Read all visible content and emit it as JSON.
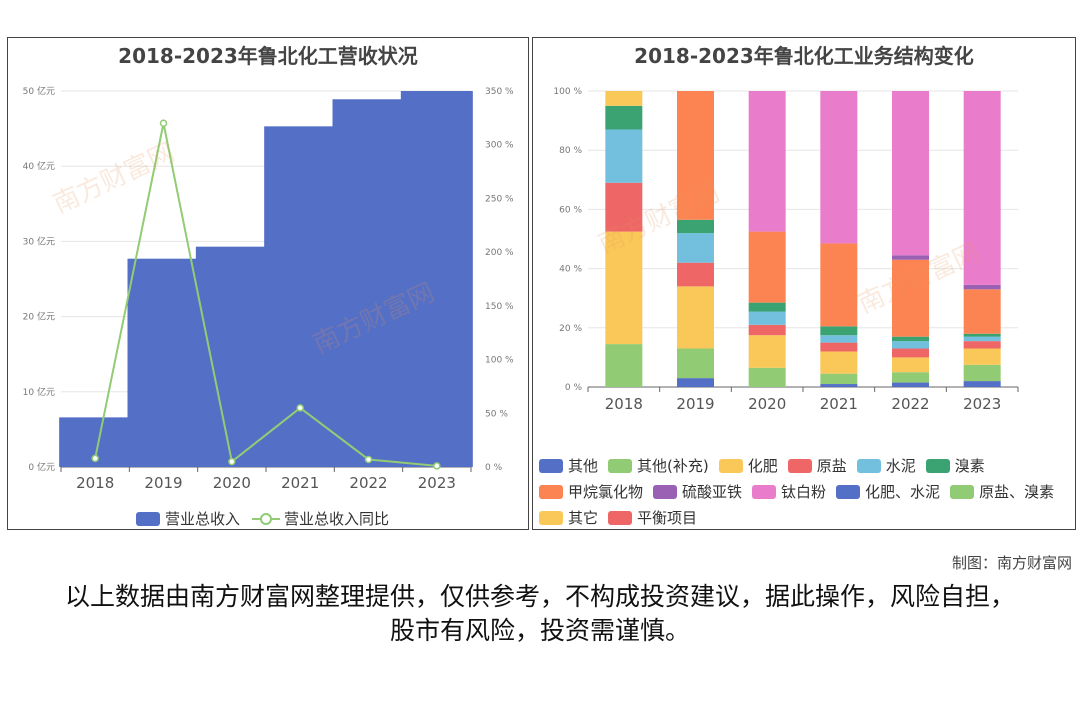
{
  "credit": "制图：南方财富网",
  "disclaimer": "以上数据由南方财富网整理提供，仅供参考，不构成投资建议，据此操作，风险自担，股市有风险，投资需谨慎。",
  "watermark": "南方财富网",
  "chart_data": [
    {
      "type": "bar",
      "title": "2018-2023年鲁北化工营收状况",
      "categories": [
        "2018",
        "2019",
        "2020",
        "2021",
        "2022",
        "2023"
      ],
      "series": [
        {
          "name": "营业总收入",
          "type": "bar",
          "axis": "left",
          "color": "#546fc6",
          "values": [
            6.6,
            27.7,
            29.3,
            45.3,
            48.9,
            50.0
          ]
        },
        {
          "name": "营业总收入同比",
          "type": "line",
          "axis": "right",
          "color": "#91cc75",
          "values": [
            8,
            320,
            5,
            55,
            7,
            1
          ]
        }
      ],
      "left_axis": {
        "min": 0,
        "max": 50,
        "step": 10,
        "unit": "亿元",
        "tick_labels": [
          "0 亿元",
          "10 亿元",
          "20 亿元",
          "30 亿元",
          "40 亿元",
          "50 亿元"
        ]
      },
      "right_axis": {
        "min": 0,
        "max": 350,
        "step": 50,
        "unit": "%",
        "tick_labels": [
          "0 %",
          "50 %",
          "100 %",
          "150 %",
          "200 %",
          "250 %",
          "300 %",
          "350 %"
        ]
      },
      "legend": [
        "营业总收入",
        "营业总收入同比"
      ],
      "legend_position": "bottom",
      "grid": true
    },
    {
      "type": "bar",
      "stacked": "percent",
      "title": "2018-2023年鲁北化工业务结构变化",
      "categories": [
        "2018",
        "2019",
        "2020",
        "2021",
        "2022",
        "2023"
      ],
      "y_axis": {
        "min": 0,
        "max": 100,
        "step": 20,
        "tick_labels": [
          "0 %",
          "20 %",
          "40 %",
          "60 %",
          "80 %",
          "100 %"
        ]
      },
      "series": [
        {
          "name": "其他",
          "color": "#546fc6",
          "values": [
            0,
            3,
            0,
            1,
            1.5,
            2
          ]
        },
        {
          "name": "其他(补充)",
          "color": "#91cc75",
          "values": [
            14.5,
            10,
            6.5,
            3.5,
            3.5,
            5.5
          ]
        },
        {
          "name": "化肥",
          "color": "#fac858",
          "values": [
            38,
            21,
            11,
            7.5,
            5,
            5.5
          ]
        },
        {
          "name": "原盐",
          "color": "#ee6666",
          "values": [
            16.5,
            8,
            3.5,
            3,
            3,
            2.5
          ]
        },
        {
          "name": "水泥",
          "color": "#73c0de",
          "values": [
            18,
            10,
            4.5,
            2.5,
            2.5,
            1.5
          ]
        },
        {
          "name": "溴素",
          "color": "#3ba272",
          "values": [
            8,
            4.5,
            3,
            3,
            1.5,
            1
          ]
        },
        {
          "name": "甲烷氯化物",
          "color": "#fc8452",
          "values": [
            0,
            43.5,
            24,
            28,
            26,
            15
          ]
        },
        {
          "name": "硫酸亚铁",
          "color": "#9a60b4",
          "values": [
            0,
            0,
            0,
            0,
            1.5,
            1.5
          ]
        },
        {
          "name": "钛白粉",
          "color": "#ea7ccc",
          "values": [
            0,
            0,
            47.5,
            51.5,
            55.5,
            65.5
          ]
        },
        {
          "name": "化肥、水泥",
          "color": "#546fc6",
          "values": [
            0,
            0,
            0,
            0,
            0,
            0
          ]
        },
        {
          "name": "原盐、溴素",
          "color": "#91cc75",
          "values": [
            0,
            0,
            0,
            0,
            0,
            0
          ]
        },
        {
          "name": "其它",
          "color": "#fac858",
          "values": [
            5,
            0,
            0,
            0,
            0,
            0
          ]
        },
        {
          "name": "平衡项目",
          "color": "#ee6666",
          "values": [
            0,
            0,
            0,
            0,
            0,
            0
          ]
        }
      ],
      "legend_position": "bottom",
      "grid": true
    }
  ]
}
